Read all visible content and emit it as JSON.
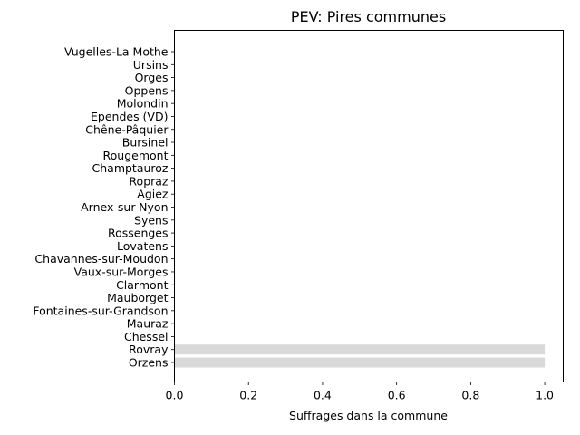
{
  "chart_data": {
    "type": "bar",
    "orientation": "horizontal",
    "title": "PEV: Pires communes",
    "xlabel": "Suffrages dans la commune",
    "ylabel": "",
    "xlim": [
      0,
      1.05
    ],
    "xticks": [
      0.0,
      0.2,
      0.4,
      0.6,
      0.8,
      1.0
    ],
    "xtick_labels": [
      "0.0",
      "0.2",
      "0.4",
      "0.6",
      "0.8",
      "1.0"
    ],
    "grid": false,
    "bar_color": "#d9d9d9",
    "categories": [
      "Vugelles-La Mothe",
      "Ursins",
      "Orges",
      "Oppens",
      "Molondin",
      "Ependes (VD)",
      "Chêne-Pâquier",
      "Bursinel",
      "Rougemont",
      "Champtauroz",
      "Ropraz",
      "Agiez",
      "Arnex-sur-Nyon",
      "Syens",
      "Rossenges",
      "Lovatens",
      "Chavannes-sur-Moudon",
      "Vaux-sur-Morges",
      "Clarmont",
      "Mauborget",
      "Fontaines-sur-Grandson",
      "Mauraz",
      "Chessel",
      "Rovray",
      "Orzens"
    ],
    "values": [
      0,
      0,
      0,
      0,
      0,
      0,
      0,
      0,
      0,
      0,
      0,
      0,
      0,
      0,
      0,
      0,
      0,
      0,
      0,
      0,
      0,
      0,
      0,
      1.0,
      1.0
    ]
  }
}
